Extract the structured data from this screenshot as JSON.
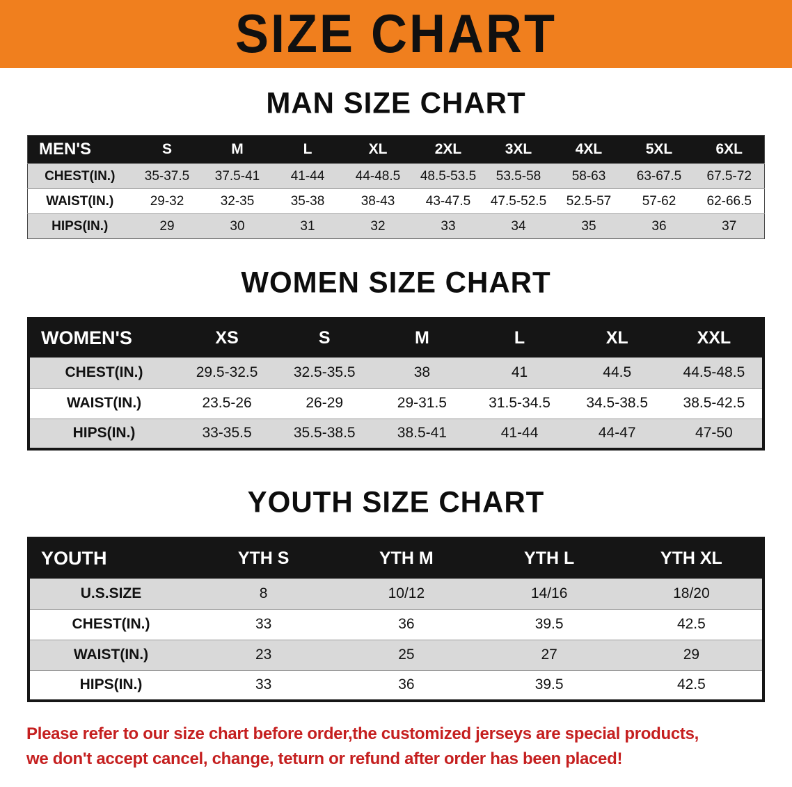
{
  "banner": {
    "title": "SIZE CHART",
    "bg_color": "#f07f1e",
    "text_color": "#101010"
  },
  "colors": {
    "table_header_bg": "#151515",
    "table_stripe_gray": "#d9d9d9",
    "disclaimer_red": "#c51f1f"
  },
  "sections": [
    {
      "heading": "MAN SIZE CHART",
      "table": {
        "header": [
          "MEN'S",
          "S",
          "M",
          "L",
          "XL",
          "2XL",
          "3XL",
          "4XL",
          "5XL",
          "6XL"
        ],
        "rows": [
          [
            "CHEST(IN.)",
            "35-37.5",
            "37.5-41",
            "41-44",
            "44-48.5",
            "48.5-53.5",
            "53.5-58",
            "58-63",
            "63-67.5",
            "67.5-72"
          ],
          [
            "WAIST(IN.)",
            "29-32",
            "32-35",
            "35-38",
            "38-43",
            "43-47.5",
            "47.5-52.5",
            "52.5-57",
            "57-62",
            "62-66.5"
          ],
          [
            "HIPS(IN.)",
            "29",
            "30",
            "31",
            "32",
            "33",
            "34",
            "35",
            "36",
            "37"
          ]
        ]
      }
    },
    {
      "heading": "WOMEN SIZE CHART",
      "table": {
        "header": [
          "WOMEN'S",
          "XS",
          "S",
          "M",
          "L",
          "XL",
          "XXL"
        ],
        "rows": [
          [
            "CHEST(IN.)",
            "29.5-32.5",
            "32.5-35.5",
            "38",
            "41",
            "44.5",
            "44.5-48.5"
          ],
          [
            "WAIST(IN.)",
            "23.5-26",
            "26-29",
            "29-31.5",
            "31.5-34.5",
            "34.5-38.5",
            "38.5-42.5"
          ],
          [
            "HIPS(IN.)",
            "33-35.5",
            "35.5-38.5",
            "38.5-41",
            "41-44",
            "44-47",
            "47-50"
          ]
        ]
      }
    },
    {
      "heading": "YOUTH SIZE CHART",
      "table": {
        "header": [
          "YOUTH",
          "YTH S",
          "YTH M",
          "YTH L",
          "YTH XL"
        ],
        "rows": [
          [
            "U.S.SIZE",
            "8",
            "10/12",
            "14/16",
            "18/20"
          ],
          [
            "CHEST(IN.)",
            "33",
            "36",
            "39.5",
            "42.5"
          ],
          [
            "WAIST(IN.)",
            "23",
            "25",
            "27",
            "29"
          ],
          [
            "HIPS(IN.)",
            "33",
            "36",
            "39.5",
            "42.5"
          ]
        ]
      }
    }
  ],
  "disclaimer": {
    "line1": "Please refer to our size chart before order,the customized jerseys are special products,",
    "line2": "we don't accept cancel, change, teturn or refund after order has been placed!"
  }
}
